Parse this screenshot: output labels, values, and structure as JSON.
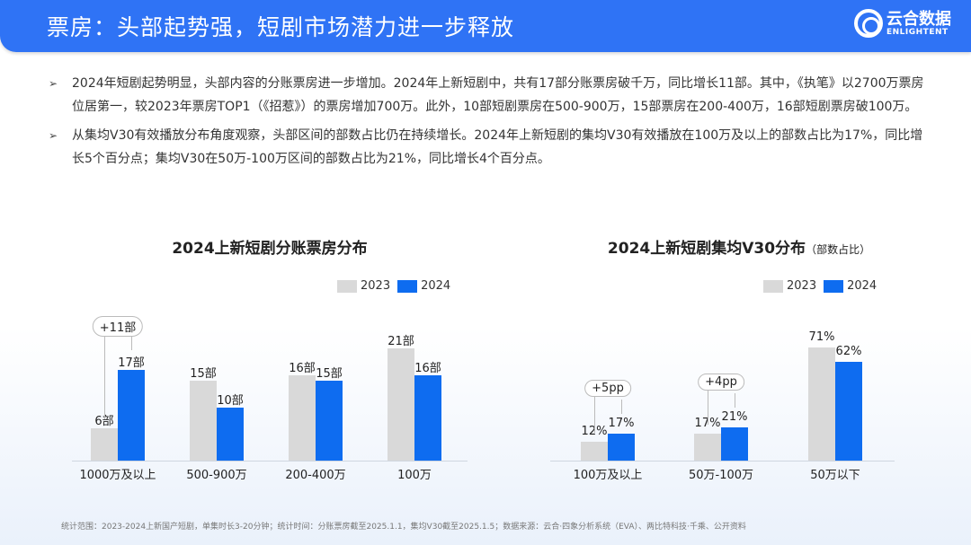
{
  "header": {
    "title": "票房：头部起势强，短剧市场潜力进一步释放",
    "logo_cn": "云合数据",
    "logo_en": "ENLIGHTENT"
  },
  "bullets": [
    "2024年短剧起势明显，头部内容的分账票房进一步增加。2024年上新短剧中，共有17部分账票房破千万，同比增长11部。其中，《执笔》以2700万票房位居第一，较2023年票房TOP1（《招惹》）的票房增加700万。此外，10部短剧票房在500-900万，15部票房在200-400万，16部短剧票房破100万。",
    "从集均V30有效播放分布角度观察，头部区间的部数占比仍在持续增长。2024年上新短剧的集均V30有效播放在100万及以上的部数占比为17%，同比增长5个百分点；集均V30在50万-100万区间的部数占比为21%，同比增长4个百分点。"
  ],
  "colors": {
    "y2023": "#d9d9d9",
    "y2024": "#0e6cf0"
  },
  "chart_data": [
    {
      "type": "bar",
      "title": "2024上新短剧分账票房分布",
      "legend": [
        "2023",
        "2024"
      ],
      "legend_position": "top-right",
      "categories": [
        "1000万及以上",
        "500-900万",
        "200-400万",
        "100万"
      ],
      "series": [
        {
          "name": "2023",
          "values": [
            6,
            15,
            16,
            21
          ]
        },
        {
          "name": "2024",
          "values": [
            17,
            10,
            15,
            16
          ]
        }
      ],
      "labels": [
        [
          "6部",
          "15部",
          "16部",
          "21部"
        ],
        [
          "17部",
          "10部",
          "15部",
          "16部"
        ]
      ],
      "annotation": "+11部",
      "unit": "部"
    },
    {
      "type": "bar",
      "title": "2024上新短剧集均V30分布",
      "subtitle": "（部数占比）",
      "legend": [
        "2023",
        "2024"
      ],
      "legend_position": "top-right",
      "categories": [
        "100万及以上",
        "50万-100万",
        "50万以下"
      ],
      "series": [
        {
          "name": "2023",
          "values": [
            12,
            17,
            71
          ]
        },
        {
          "name": "2024",
          "values": [
            17,
            21,
            62
          ]
        }
      ],
      "labels": [
        [
          "12%",
          "17%",
          "71%"
        ],
        [
          "17%",
          "21%",
          "62%"
        ]
      ],
      "annotations": [
        "+5pp",
        "+4pp"
      ],
      "unit": "%"
    }
  ],
  "footer": "统计范围：2023-2024上新国产短剧，单集时长3-20分钟；统计时间：分账票房截至2025.1.1，集均V30截至2025.1.5；数据来源：云合·四象分析系统（EVA）、两比特科技·千乘、公开资料"
}
